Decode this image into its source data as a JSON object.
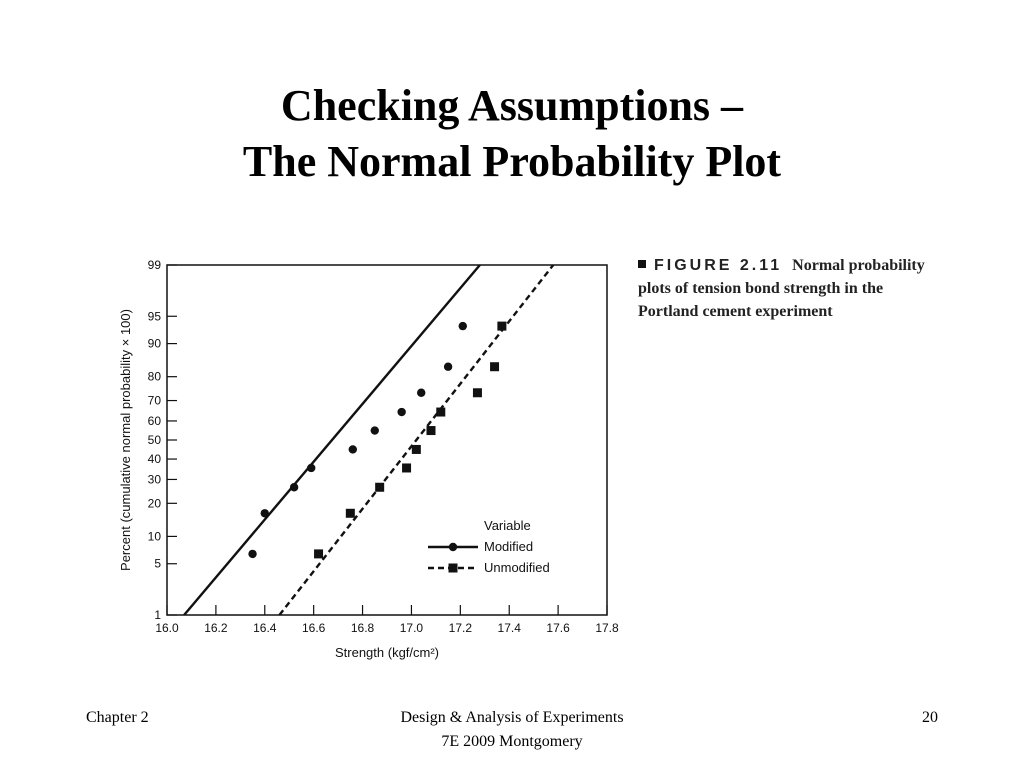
{
  "slide": {
    "title_line1": "Checking Assumptions –",
    "title_line2": "The Normal Probability Plot"
  },
  "caption": {
    "figure_label": "FIGURE 2.11",
    "text": "Normal probability plots of tension bond strength in the Portland cement experiment"
  },
  "footer": {
    "left": "Chapter 2",
    "center_line1": "Design & Analysis of Experiments",
    "center_line2": "7E 2009 Montgomery",
    "page_number": "20"
  },
  "colors": {
    "ink": "#111111",
    "background": "#ffffff"
  },
  "chart_data": {
    "type": "scatter",
    "title": "",
    "xlabel": "Strength (kgf/cm²)",
    "ylabel": "Percent (cumulative normal probability × 100)",
    "xlim": [
      16.0,
      17.8
    ],
    "ylim": [
      1,
      99
    ],
    "y_scale": "normal probability",
    "x_ticks": [
      "16.0",
      "16.2",
      "16.4",
      "16.6",
      "16.8",
      "17.0",
      "17.2",
      "17.4",
      "17.6",
      "17.8"
    ],
    "y_ticks": [
      "1",
      "5",
      "10",
      "20",
      "30",
      "40",
      "50",
      "60",
      "70",
      "80",
      "90",
      "95",
      "99"
    ],
    "legend_title": "Variable",
    "legend_position": "bottom-right",
    "grid": false,
    "series": [
      {
        "name": "Modified",
        "marker": "circle",
        "line_style": "solid",
        "points": [
          {
            "x": 16.35,
            "y": 6.5
          },
          {
            "x": 16.4,
            "y": 16.5
          },
          {
            "x": 16.52,
            "y": 26.5
          },
          {
            "x": 16.59,
            "y": 35.5
          },
          {
            "x": 16.76,
            "y": 45
          },
          {
            "x": 16.85,
            "y": 55
          },
          {
            "x": 16.96,
            "y": 64.5
          },
          {
            "x": 17.04,
            "y": 73.5
          },
          {
            "x": 17.15,
            "y": 83.5
          },
          {
            "x": 17.21,
            "y": 93.5
          }
        ],
        "fit_line": [
          {
            "x": 16.07,
            "y": 1
          },
          {
            "x": 17.28,
            "y": 99
          }
        ]
      },
      {
        "name": "Unmodified",
        "marker": "square",
        "line_style": "dashed",
        "points": [
          {
            "x": 16.62,
            "y": 6.5
          },
          {
            "x": 16.75,
            "y": 16.5
          },
          {
            "x": 16.87,
            "y": 26.5
          },
          {
            "x": 16.98,
            "y": 35.5
          },
          {
            "x": 17.02,
            "y": 45
          },
          {
            "x": 17.08,
            "y": 55
          },
          {
            "x": 17.12,
            "y": 64.5
          },
          {
            "x": 17.27,
            "y": 73.5
          },
          {
            "x": 17.34,
            "y": 83.5
          },
          {
            "x": 17.37,
            "y": 93.5
          }
        ],
        "fit_line": [
          {
            "x": 16.46,
            "y": 1
          },
          {
            "x": 17.58,
            "y": 99
          }
        ]
      }
    ]
  }
}
